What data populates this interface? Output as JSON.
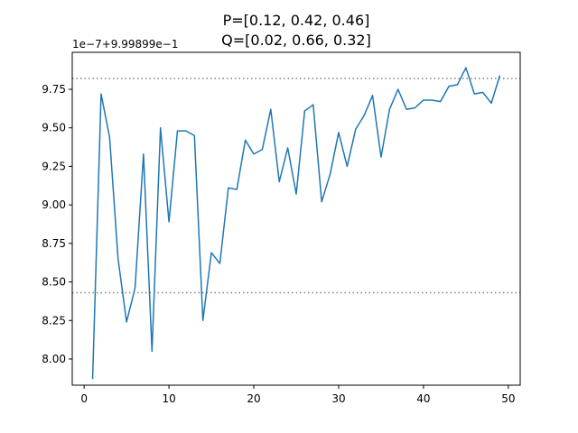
{
  "chart_data": {
    "type": "line",
    "title": "P=[0.12, 0.42, 0.46]\nQ=[0.02, 0.66, 0.32]",
    "title_lines": [
      "P=[0.12, 0.42, 0.46]",
      "Q=[0.02, 0.66, 0.32]"
    ],
    "offset_label": "1e−7+9.99899e−1",
    "xlabel": "",
    "ylabel": "",
    "xlim": [
      -1.4,
      51.4
    ],
    "ylim": [
      7.83,
      9.99
    ],
    "xticks": [
      0,
      10,
      20,
      30,
      40,
      50
    ],
    "xtick_labels": [
      "0",
      "10",
      "20",
      "30",
      "40",
      "50"
    ],
    "yticks": [
      8.0,
      8.25,
      8.5,
      8.75,
      9.0,
      9.25,
      9.5,
      9.75
    ],
    "ytick_labels": [
      "8.00",
      "8.25",
      "8.50",
      "8.75",
      "9.00",
      "9.25",
      "9.50",
      "9.75"
    ],
    "grid": false,
    "series": [
      {
        "color": "#1f77b4",
        "x": [
          1,
          2,
          3,
          4,
          5,
          6,
          7,
          8,
          9,
          10,
          11,
          12,
          13,
          14,
          15,
          16,
          17,
          18,
          19,
          20,
          21,
          22,
          23,
          24,
          25,
          26,
          27,
          28,
          29,
          30,
          31,
          32,
          33,
          34,
          35,
          36,
          37,
          38,
          39,
          40,
          41,
          42,
          43,
          44,
          45,
          46,
          47,
          48,
          49
        ],
        "y": [
          7.87,
          9.72,
          9.44,
          8.65,
          8.24,
          8.46,
          9.33,
          8.05,
          9.5,
          8.89,
          9.48,
          9.48,
          9.45,
          8.25,
          8.69,
          8.62,
          9.11,
          9.1,
          9.42,
          9.33,
          9.36,
          9.62,
          9.15,
          9.37,
          9.07,
          9.61,
          9.65,
          9.02,
          9.2,
          9.47,
          9.25,
          9.49,
          9.58,
          9.71,
          9.31,
          9.62,
          9.75,
          9.62,
          9.63,
          9.68,
          9.68,
          9.67,
          9.77,
          9.78,
          9.89,
          9.72,
          9.73,
          9.66,
          9.84
        ]
      }
    ],
    "hlines": [
      {
        "y": 9.82,
        "style": "dotted",
        "color": "#808080"
      },
      {
        "y": 8.43,
        "style": "dotted",
        "color": "#808080"
      }
    ]
  }
}
